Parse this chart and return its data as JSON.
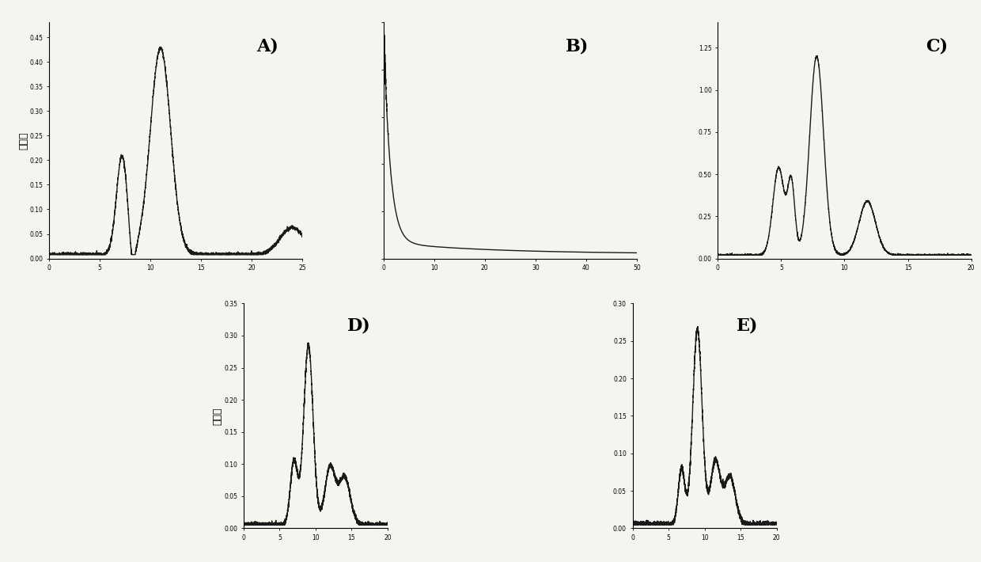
{
  "ylabel": "吸光度",
  "line_color": "#1a1a1a",
  "line_width": 1.0,
  "bg_color": "#f5f5f0",
  "panel_A": {
    "xlim": [
      0,
      25
    ],
    "ylim": [
      0.0,
      0.48
    ],
    "xticks": [
      0,
      5,
      10,
      15,
      20,
      25
    ],
    "yticks_vals": [
      0.0,
      0.05,
      0.1,
      0.15,
      0.2,
      0.25,
      0.3,
      0.35,
      0.4,
      0.45
    ],
    "yticks_labels": [
      "0.00",
      "0.05",
      "0.10",
      "0.15",
      "0.20",
      "0.25",
      "0.30",
      "0.35",
      "0.40",
      "0.45"
    ],
    "label": "A)"
  },
  "panel_B": {
    "xlim": [
      0,
      50
    ],
    "ylim": [
      0.0,
      1.0
    ],
    "xticks": [
      0,
      10,
      20,
      30,
      40,
      50
    ],
    "yticks_vals": [
      0.0,
      0.2,
      0.4,
      0.6,
      0.8,
      1.0
    ],
    "yticks_labels": [
      "",
      "",
      "",
      "",
      "",
      ""
    ],
    "label": "B)"
  },
  "panel_C": {
    "xlim": [
      0,
      20
    ],
    "ylim": [
      0.0,
      1.4
    ],
    "xticks": [
      0,
      5,
      10,
      15,
      20
    ],
    "yticks_vals": [
      0.0,
      0.25,
      0.5,
      0.75,
      1.0,
      1.25
    ],
    "yticks_labels": [
      "0.00",
      "0.25",
      "0.50",
      "0.75",
      "1.00",
      "1.25"
    ],
    "label": "C)"
  },
  "panel_D": {
    "xlim": [
      0,
      20
    ],
    "ylim": [
      0.0,
      0.35
    ],
    "xticks": [
      0,
      5,
      10,
      15,
      20
    ],
    "yticks_vals": [
      0.0,
      0.05,
      0.1,
      0.15,
      0.2,
      0.25,
      0.3,
      0.35
    ],
    "yticks_labels": [
      "0.00",
      "0.05",
      "0.10",
      "0.15",
      "0.20",
      "0.25",
      "0.30",
      "0.35"
    ],
    "label": "D)"
  },
  "panel_E": {
    "xlim": [
      0,
      20
    ],
    "ylim": [
      0.0,
      0.3
    ],
    "xticks": [
      0,
      5,
      10,
      15,
      20
    ],
    "yticks_vals": [
      0.0,
      0.05,
      0.1,
      0.15,
      0.2,
      0.25,
      0.3
    ],
    "yticks_labels": [
      "0.00",
      "0.05",
      "0.10",
      "0.15",
      "0.20",
      "0.25",
      "0.30"
    ],
    "label": "E)"
  }
}
